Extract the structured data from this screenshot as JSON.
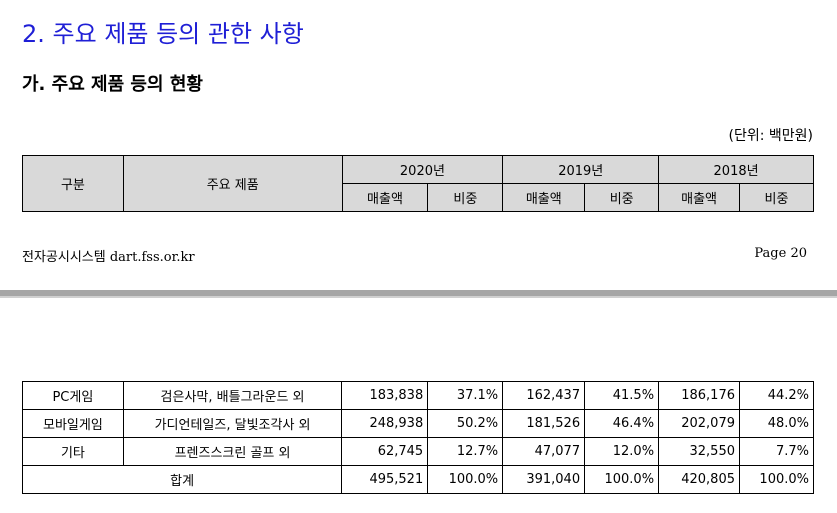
{
  "page1": {
    "section_title": "2. 주요 제품 등의 관한 사항",
    "sub_title": "가. 주요 제품 등의 현황",
    "unit": "(단위: 백만원)",
    "header": {
      "col_category": "구분",
      "col_product": "주요 제품",
      "years": [
        "2020년",
        "2019년",
        "2018년"
      ],
      "sales": "매출액",
      "ratio": "비중"
    },
    "footer_left": "전자공시시스템 dart.fss.or.kr",
    "footer_right": "Page 20"
  },
  "page2": {
    "rows": [
      {
        "category": "PC게임",
        "product": "검은사막, 배틀그라운드 외",
        "s2020": "183,838",
        "r2020": "37.1%",
        "s2019": "162,437",
        "r2019": "41.5%",
        "s2018": "186,176",
        "r2018": "44.2%"
      },
      {
        "category": "모바일게임",
        "product": "가디언테일즈, 달빛조각사 외",
        "s2020": "248,938",
        "r2020": "50.2%",
        "s2019": "181,526",
        "r2019": "46.4%",
        "s2018": "202,079",
        "r2018": "48.0%"
      },
      {
        "category": "기타",
        "product": "프렌즈스크린 골프 외",
        "s2020": "62,745",
        "r2020": "12.7%",
        "s2019": "47,077",
        "r2019": "12.0%",
        "s2018": "32,550",
        "r2018": "7.7%"
      }
    ],
    "total": {
      "label": "합계",
      "s2020": "495,521",
      "r2020": "100.0%",
      "s2019": "391,040",
      "r2019": "100.0%",
      "s2018": "420,805",
      "r2018": "100.0%"
    }
  }
}
